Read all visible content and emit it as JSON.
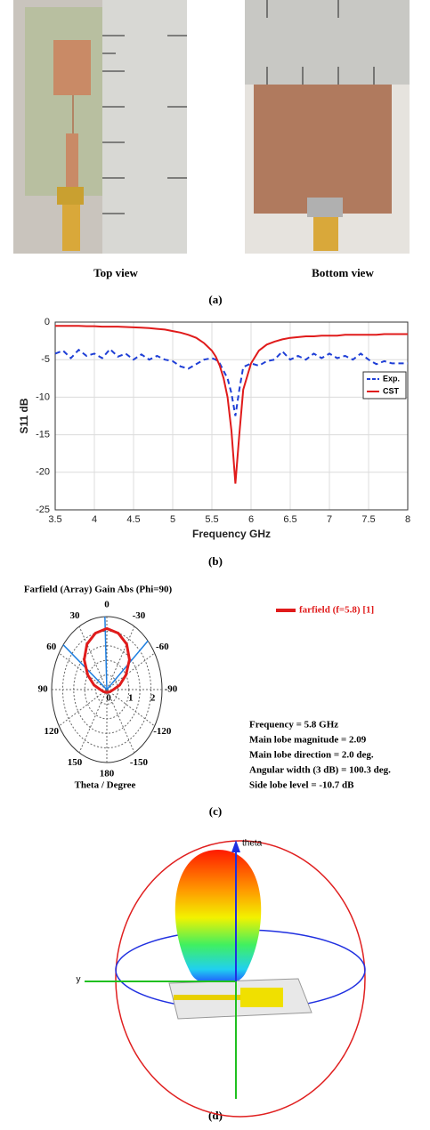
{
  "figure": {
    "photo_labels": [
      "Top view",
      "Bottom view"
    ],
    "captions": [
      "(a)",
      "(b)",
      "(c)",
      "(d)"
    ],
    "render_axes": [
      "y",
      "theta"
    ]
  },
  "chart_data": [
    {
      "type": "line",
      "xlabel": "Frequency GHz",
      "ylabel": "S11 dB",
      "x": [
        3.5,
        3.6,
        3.7,
        3.8,
        3.9,
        4.0,
        4.1,
        4.2,
        4.3,
        4.4,
        4.5,
        4.6,
        4.7,
        4.8,
        4.9,
        5.0,
        5.1,
        5.2,
        5.3,
        5.4,
        5.5,
        5.55,
        5.6,
        5.65,
        5.7,
        5.75,
        5.8,
        5.85,
        5.9,
        6.0,
        6.1,
        6.2,
        6.3,
        6.4,
        6.5,
        6.6,
        6.7,
        6.8,
        6.9,
        7.0,
        7.1,
        7.2,
        7.3,
        7.4,
        7.5,
        7.6,
        7.7,
        7.8,
        7.9,
        8.0
      ],
      "series": [
        {
          "name": "Exp.",
          "color": "#1f3fd6",
          "dash": true,
          "values": [
            -4.2,
            -3.8,
            -4.8,
            -3.7,
            -4.5,
            -4.2,
            -4.8,
            -3.6,
            -4.6,
            -4.2,
            -5.0,
            -4.3,
            -5.0,
            -4.5,
            -5.0,
            -5.2,
            -5.9,
            -6.2,
            -5.6,
            -5.0,
            -4.8,
            -5.0,
            -5.5,
            -6.5,
            -7.5,
            -9.5,
            -12.5,
            -9.0,
            -6.0,
            -5.5,
            -5.8,
            -5.2,
            -5.0,
            -3.9,
            -5.0,
            -4.5,
            -5.0,
            -4.2,
            -4.8,
            -4.2,
            -4.8,
            -4.5,
            -5.0,
            -4.2,
            -5.0,
            -5.6,
            -5.2,
            -5.5,
            -5.5,
            -5.5
          ]
        },
        {
          "name": "CST",
          "color": "#e01b1b",
          "dash": false,
          "values": [
            -0.5,
            -0.5,
            -0.5,
            -0.5,
            -0.55,
            -0.55,
            -0.6,
            -0.6,
            -0.6,
            -0.65,
            -0.7,
            -0.75,
            -0.8,
            -0.9,
            -1.0,
            -1.2,
            -1.4,
            -1.7,
            -2.1,
            -2.8,
            -3.8,
            -4.6,
            -5.8,
            -7.5,
            -10,
            -14.5,
            -21.5,
            -15,
            -9,
            -5.5,
            -3.8,
            -3.0,
            -2.6,
            -2.3,
            -2.1,
            -2.0,
            -1.9,
            -1.9,
            -1.8,
            -1.8,
            -1.8,
            -1.7,
            -1.7,
            -1.7,
            -1.7,
            -1.7,
            -1.6,
            -1.6,
            -1.6,
            -1.6
          ]
        }
      ],
      "xlim": [
        3.5,
        8
      ],
      "xticks": [
        3.5,
        4,
        4.5,
        5,
        5.5,
        6,
        6.5,
        7,
        7.5,
        8
      ],
      "ylim": [
        -25,
        0
      ],
      "yticks": [
        -25,
        -20,
        -15,
        -10,
        -5,
        0
      ],
      "grid": true,
      "legend": "right"
    },
    {
      "type": "polar",
      "title": "Farfield (Array) Gain Abs (Phi=90)",
      "axis_label": "Theta / Degree",
      "theta": [
        -180,
        -165,
        -150,
        -135,
        -120,
        -105,
        -90,
        -75,
        -60,
        -45,
        -30,
        -15,
        0,
        15,
        30,
        45,
        60,
        75,
        90,
        105,
        120,
        135,
        150,
        165,
        180
      ],
      "series": [
        {
          "name": "farfield (f=5.8) [1]",
          "color": "#e01b1b",
          "values": [
            0.1,
            0.1,
            0.1,
            0.12,
            0.15,
            0.2,
            0.3,
            0.6,
            1.0,
            1.45,
            1.8,
            2.0,
            2.09,
            2.0,
            1.8,
            1.45,
            1.0,
            0.6,
            0.3,
            0.2,
            0.15,
            0.12,
            0.1,
            0.1,
            0.1
          ]
        }
      ],
      "rlim": [
        0,
        2.5
      ],
      "rticks": [
        0,
        1,
        2
      ],
      "thetaticks": [
        0,
        30,
        60,
        90,
        120,
        150,
        180,
        -150,
        -120,
        -90,
        -60,
        -30
      ],
      "annotations": [
        {
          "label": "Frequency = 5.8 GHz",
          "value": 5.8
        },
        {
          "label": "Main lobe magnitude =     2.09",
          "value": 2.09
        },
        {
          "label": "Main lobe direction =   2.0 deg.",
          "value": 2
        },
        {
          "label": "Angular width (3 dB) = 100.3 deg.",
          "value": 100.3
        },
        {
          "label": "Side lobe level =  -10.7 dB",
          "value": -10.7
        }
      ]
    }
  ]
}
